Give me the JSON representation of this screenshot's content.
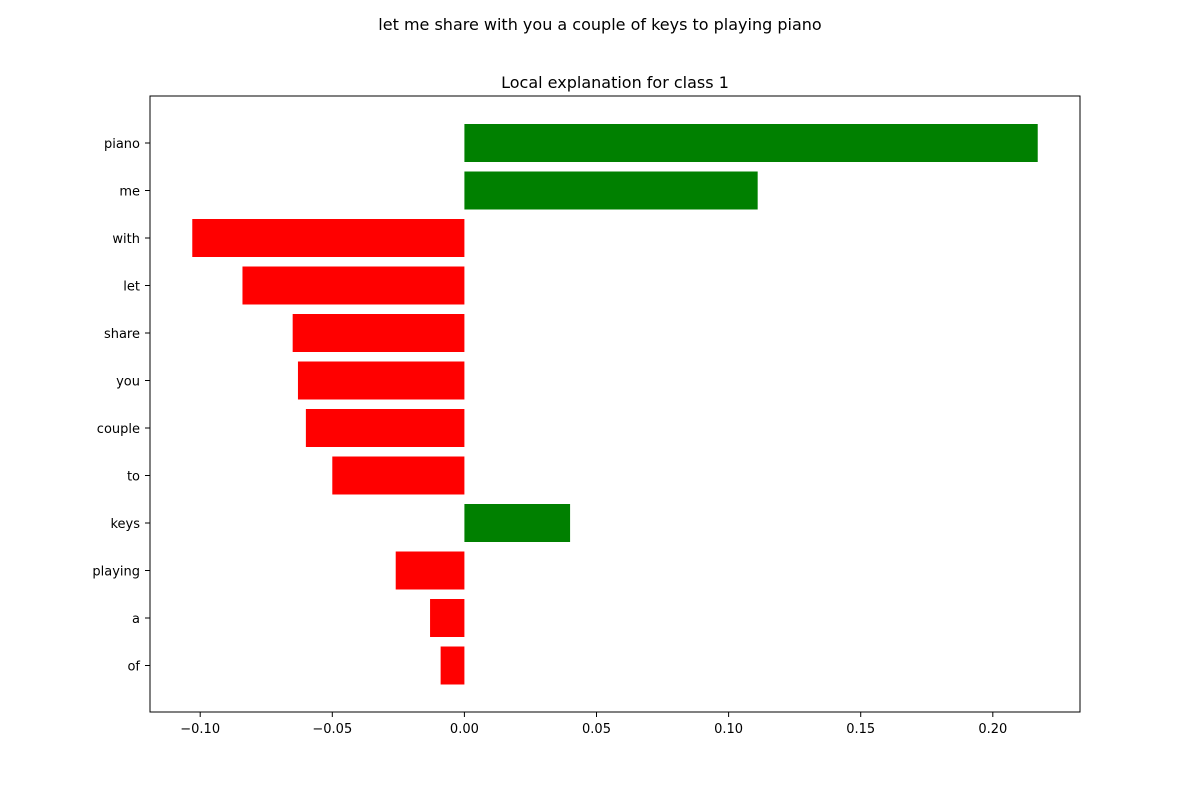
{
  "chart_data": {
    "type": "bar",
    "orientation": "horizontal",
    "suptitle": "let me share with you a couple of keys to playing piano",
    "title": "Local explanation for class 1",
    "categories": [
      "piano",
      "me",
      "with",
      "let",
      "share",
      "you",
      "couple",
      "to",
      "keys",
      "playing",
      "a",
      "of"
    ],
    "values": [
      0.217,
      0.111,
      -0.103,
      -0.084,
      -0.065,
      -0.063,
      -0.06,
      -0.05,
      0.04,
      -0.026,
      -0.013,
      -0.009
    ],
    "xlim": [
      -0.119,
      0.233
    ],
    "xticks": [
      -0.1,
      -0.05,
      0.0,
      0.05,
      0.1,
      0.15,
      0.2
    ],
    "xtick_labels": [
      "−0.10",
      "−0.05",
      "0.00",
      "0.05",
      "0.10",
      "0.15",
      "0.20"
    ],
    "grid": false,
    "legend": "none",
    "colors": {
      "positive": "#008000",
      "negative": "#ff0000",
      "axes": "#000000",
      "text": "#000000"
    }
  }
}
